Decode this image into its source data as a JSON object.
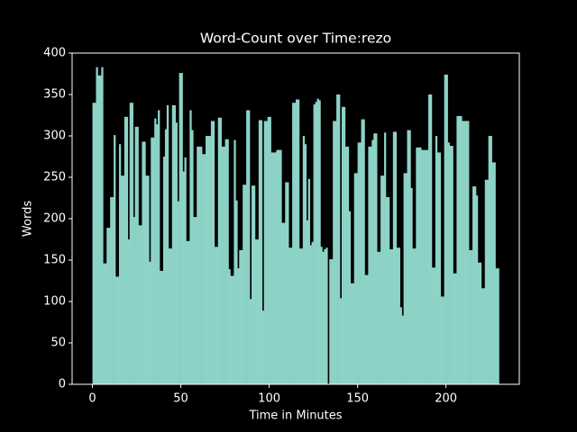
{
  "chart_data": {
    "type": "bar",
    "title": "Word-Count over Time:rezo",
    "xlabel": "Time in Minutes",
    "ylabel": "Words",
    "color": "#8dd3c7",
    "x": [
      0,
      1,
      2,
      3,
      4,
      5,
      6,
      7,
      8,
      9,
      10,
      11,
      12,
      13,
      14,
      15,
      16,
      17,
      18,
      19,
      20,
      21,
      22,
      23,
      24,
      25,
      26,
      27,
      28,
      29,
      30,
      31,
      32,
      33,
      34,
      35,
      36,
      37,
      38,
      39,
      40,
      41,
      42,
      43,
      44,
      45,
      46,
      47,
      48,
      49,
      50,
      51,
      52,
      53,
      54,
      55,
      56,
      57,
      58,
      59,
      60,
      61,
      62,
      63,
      64,
      65,
      66,
      67,
      68,
      69,
      70,
      71,
      72,
      73,
      74,
      75,
      76,
      77,
      78,
      79,
      80,
      81,
      82,
      83,
      84,
      85,
      86,
      87,
      88,
      89,
      90,
      91,
      92,
      93,
      94,
      95,
      96,
      97,
      98,
      99,
      100,
      101,
      102,
      103,
      104,
      105,
      106,
      107,
      108,
      109,
      110,
      111,
      112,
      113,
      114,
      115,
      116,
      117,
      118,
      119,
      120,
      121,
      122,
      123,
      124,
      125,
      126,
      127,
      128,
      129,
      130,
      131,
      132,
      133,
      134,
      135,
      136,
      137,
      138,
      139,
      140,
      141,
      142,
      143,
      144,
      145,
      146,
      147,
      148,
      149,
      150,
      151,
      152,
      153,
      154,
      155,
      156,
      157,
      158,
      159,
      160,
      161,
      162,
      163,
      164,
      165,
      166,
      167,
      168,
      169,
      170,
      171,
      172,
      173,
      174,
      175,
      176,
      177,
      178,
      179,
      180,
      181,
      182,
      183,
      184,
      185,
      186,
      187,
      188,
      189,
      190,
      191,
      192,
      193,
      194,
      195,
      196,
      197,
      198,
      199,
      200,
      201,
      202,
      203,
      204,
      205,
      206,
      207,
      208,
      209,
      210,
      211,
      212,
      213,
      214,
      215,
      216,
      217,
      218,
      219,
      220,
      221,
      222,
      223,
      224,
      225,
      226,
      227,
      228,
      229
    ],
    "values": [
      340,
      340,
      383,
      373,
      373,
      383,
      146,
      146,
      189,
      189,
      226,
      226,
      301,
      130,
      130,
      290,
      252,
      252,
      323,
      323,
      175,
      340,
      340,
      202,
      311,
      311,
      192,
      192,
      293,
      293,
      252,
      252,
      148,
      298,
      298,
      321,
      314,
      331,
      137,
      137,
      275,
      308,
      337,
      164,
      164,
      337,
      337,
      316,
      221,
      376,
      376,
      257,
      274,
      173,
      173,
      331,
      307,
      202,
      202,
      287,
      287,
      287,
      278,
      278,
      300,
      300,
      300,
      318,
      318,
      166,
      166,
      322,
      322,
      287,
      287,
      296,
      296,
      139,
      131,
      131,
      295,
      222,
      140,
      162,
      162,
      241,
      241,
      331,
      331,
      103,
      240,
      240,
      175,
      175,
      319,
      319,
      89,
      318,
      318,
      323,
      323,
      280,
      280,
      280,
      283,
      283,
      283,
      195,
      195,
      244,
      244,
      165,
      165,
      340,
      340,
      344,
      344,
      164,
      164,
      300,
      290,
      198,
      248,
      168,
      172,
      338,
      341,
      345,
      343,
      166,
      160,
      163,
      165,
      0,
      151,
      151,
      318,
      318,
      350,
      350,
      104,
      335,
      335,
      287,
      287,
      209,
      122,
      122,
      255,
      255,
      292,
      292,
      320,
      320,
      132,
      132,
      287,
      287,
      295,
      303,
      303,
      160,
      160,
      252,
      252,
      304,
      226,
      226,
      163,
      163,
      305,
      305,
      165,
      165,
      93,
      83,
      255,
      255,
      307,
      307,
      237,
      164,
      164,
      286,
      286,
      286,
      283,
      283,
      283,
      283,
      350,
      350,
      141,
      141,
      300,
      280,
      280,
      106,
      106,
      374,
      374,
      292,
      288,
      288,
      134,
      134,
      324,
      324,
      324,
      318,
      318,
      318,
      318,
      162,
      162,
      239,
      239,
      228,
      147,
      147,
      116,
      116,
      247,
      247,
      300,
      300,
      268,
      268,
      140,
      140
    ],
    "xlim": [
      -11.5,
      241.5
    ],
    "xticks": [
      0,
      50,
      100,
      150,
      200
    ],
    "ylim": [
      0,
      400
    ],
    "yticks": [
      0,
      50,
      100,
      150,
      200,
      250,
      300,
      350,
      400
    ]
  }
}
